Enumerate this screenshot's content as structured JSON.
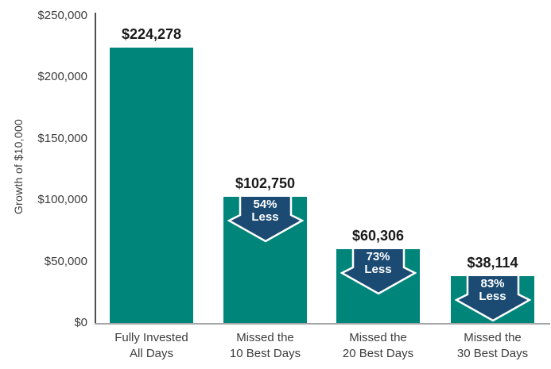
{
  "chart_data": {
    "type": "bar",
    "title": "",
    "xlabel": "",
    "ylabel": "Growth of $10,000",
    "ylim": [
      0,
      250000
    ],
    "grid": false,
    "legend": null,
    "yticks": [
      {
        "value": 0,
        "label": "$0"
      },
      {
        "value": 50000,
        "label": "$50,000"
      },
      {
        "value": 100000,
        "label": "$100,000"
      },
      {
        "value": 150000,
        "label": "$150,000"
      },
      {
        "value": 200000,
        "label": "$200,000"
      },
      {
        "value": 250000,
        "label": "$250,000"
      }
    ],
    "bars": [
      {
        "category_lines": [
          "Fully Invested",
          "All Days"
        ],
        "value": 224278,
        "value_label": "$224,278",
        "annotation": null
      },
      {
        "category_lines": [
          "Missed the",
          "10 Best Days"
        ],
        "value": 102750,
        "value_label": "$102,750",
        "annotation": {
          "percent": "54%",
          "word": "Less"
        }
      },
      {
        "category_lines": [
          "Missed the",
          "20 Best Days"
        ],
        "value": 60306,
        "value_label": "$60,306",
        "annotation": {
          "percent": "73%",
          "word": "Less"
        }
      },
      {
        "category_lines": [
          "Missed the",
          "30 Best Days"
        ],
        "value": 38114,
        "value_label": "$38,114",
        "annotation": {
          "percent": "83%",
          "word": "Less"
        }
      }
    ],
    "colors": {
      "bar": "#00857B",
      "arrow_fill": "#1B4A73",
      "arrow_outline": "#FFFFFF",
      "axis_line": "#4D4D4D",
      "baseline": "#A6A6A6",
      "tick_text": "#3D3D3D",
      "value_text": "#1A1A1A"
    }
  }
}
